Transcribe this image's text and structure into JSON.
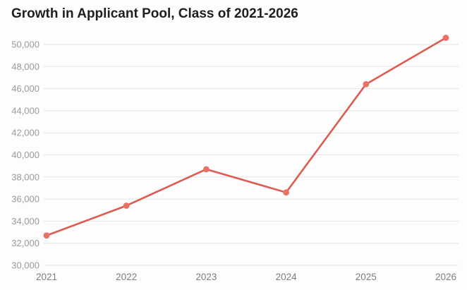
{
  "header": {
    "title": "Growth in Applicant Pool, Class of 2021-2026"
  },
  "chart_data": {
    "type": "line",
    "title": "Growth in Applicant Pool, Class of 2021-2026",
    "categories": [
      "2021",
      "2022",
      "2023",
      "2024",
      "2025",
      "2026"
    ],
    "values": [
      32700,
      35400,
      38700,
      36600,
      46400,
      50600
    ],
    "xlabel": "",
    "ylabel": "",
    "ylim": [
      30000,
      50000
    ],
    "y_ticks": [
      30000,
      32000,
      34000,
      36000,
      38000,
      40000,
      42000,
      44000,
      46000,
      48000,
      50000
    ],
    "y_tick_labels": [
      "30,000",
      "32,000",
      "34,000",
      "36,000",
      "38,000",
      "40,000",
      "42,000",
      "44,000",
      "46,000",
      "48,000",
      "50,000"
    ],
    "grid": true,
    "legend": false,
    "line_color": "#dd5c51",
    "point_color": "#ea7265",
    "grid_color": "#e4e4e4",
    "y_label_color": "#9a9a9a",
    "x_label_color": "#7d7d7d"
  }
}
